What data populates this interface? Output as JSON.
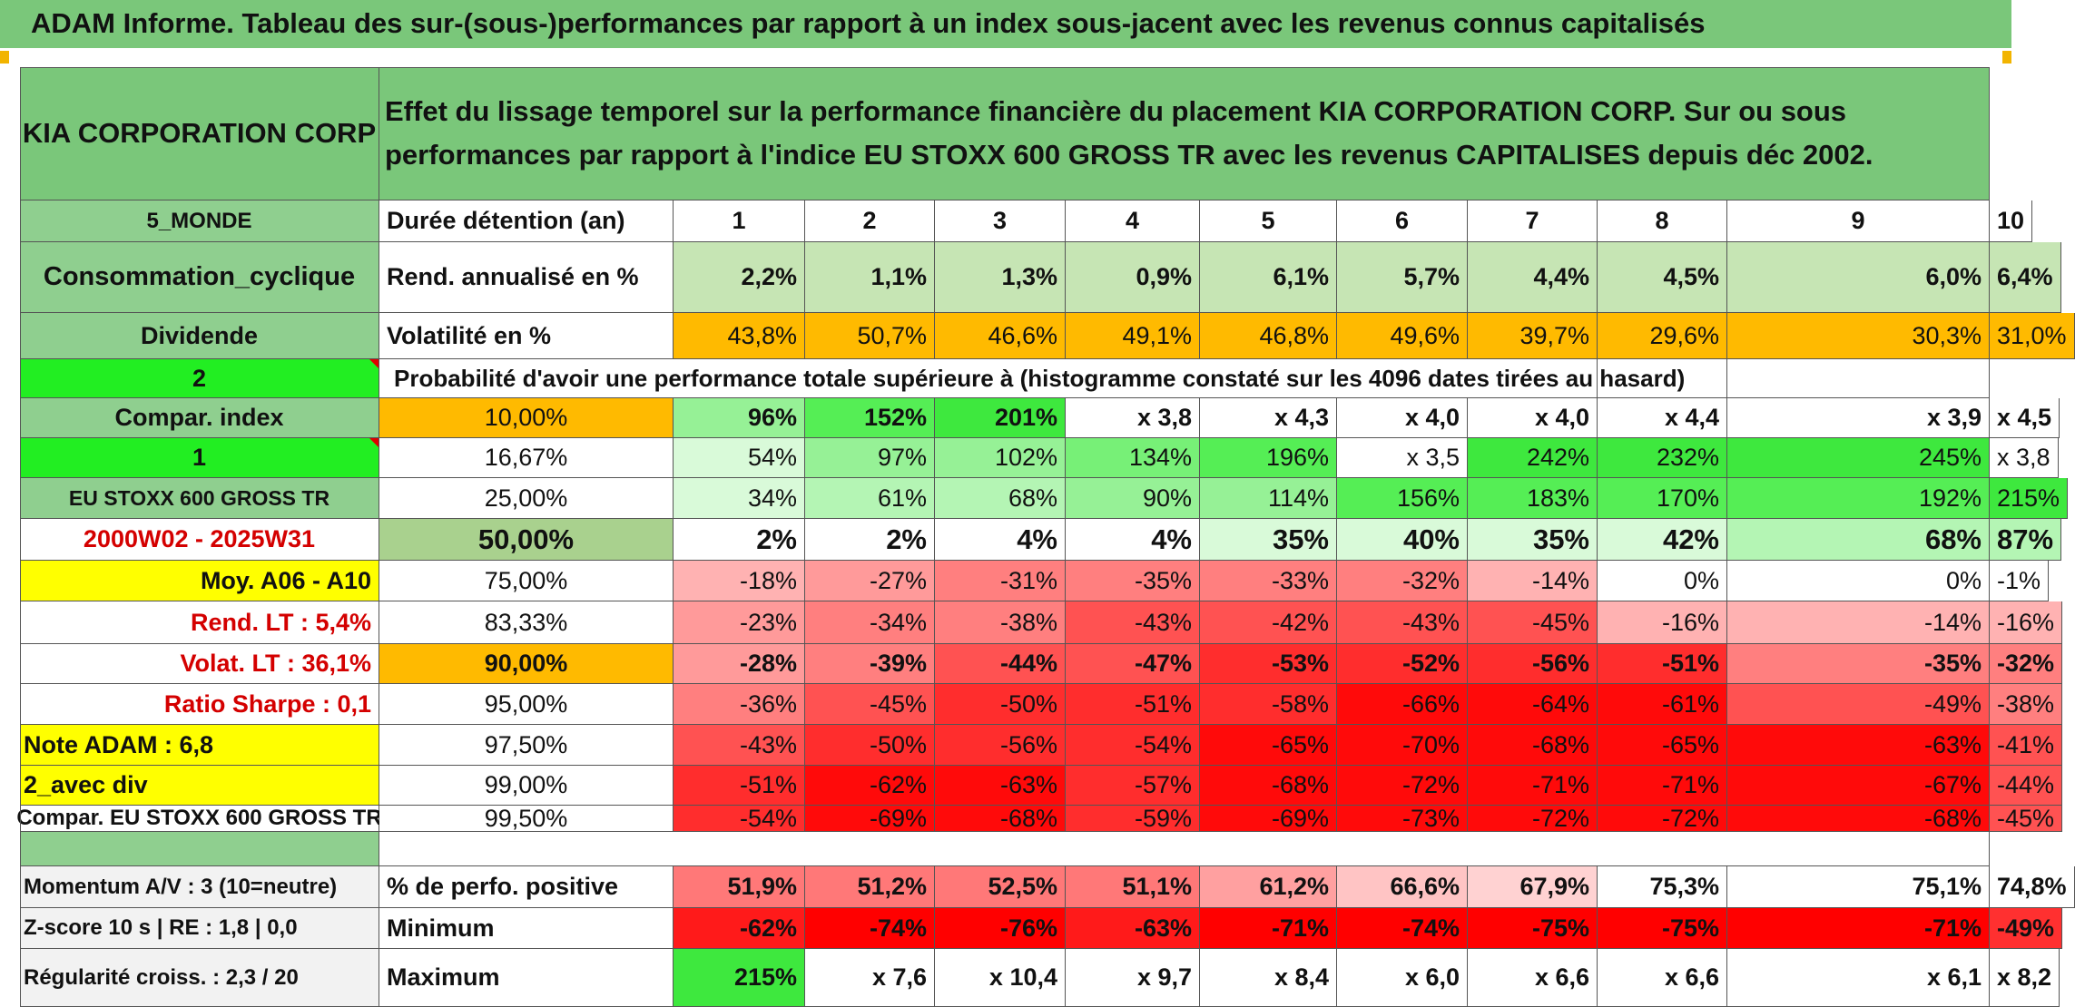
{
  "title": "ADAM Informe. Tableau des sur-(sous-)performances par rapport à un index sous-jacent avec les revenus connus capitalisés",
  "header": {
    "company": "KIA CORPORATION CORP",
    "description": "Effet du lissage temporel sur la performance financière du placement KIA CORPORATION CORP. Sur ou sous performances par rapport à l'indice EU STOXX 600 GROSS TR avec les revenus CAPITALISES depuis déc 2002."
  },
  "side_labels": [
    "5_MONDE",
    "Consommation_cyclique",
    "Dividende",
    "2",
    "Compar. index",
    "1",
    "EU STOXX 600 GROSS TR",
    "2000W02 - 2025W31",
    "Moy. A06 - A10",
    "Rend. LT :   5,4%",
    "Volat. LT :   36,1%",
    "Ratio Sharpe :    0,1",
    "Note ADAM : 6,8",
    "2_avec div",
    "Compar. EU STOXX 600 GROSS TR"
  ],
  "row_labels": {
    "duration": "Durée détention (an)",
    "return": "Rend. annualisé en %",
    "volatility": "Volatilité en %",
    "probability": "Probabilité d'avoir une performance totale supérieure à (histogramme constaté sur les 4096 dates tirées au hasard)"
  },
  "years": [
    "1",
    "2",
    "3",
    "4",
    "5",
    "6",
    "7",
    "8",
    "9",
    "10"
  ],
  "annual_return": [
    "2,2%",
    "1,1%",
    "1,3%",
    "0,9%",
    "6,1%",
    "5,7%",
    "4,4%",
    "4,5%",
    "6,0%",
    "6,4%"
  ],
  "volatility": [
    "43,8%",
    "50,7%",
    "46,6%",
    "49,1%",
    "46,8%",
    "49,6%",
    "39,7%",
    "29,6%",
    "30,3%",
    "31,0%"
  ],
  "percentiles": [
    {
      "p": "10,00%",
      "values": [
        "96%",
        "152%",
        "201%",
        "x 3,8",
        "x 4,3",
        "x 4,0",
        "x 4,0",
        "x 4,4",
        "x 3,9",
        "x 4,5"
      ]
    },
    {
      "p": "16,67%",
      "values": [
        "54%",
        "97%",
        "102%",
        "134%",
        "196%",
        "x 3,5",
        "242%",
        "232%",
        "245%",
        "x 3,8"
      ]
    },
    {
      "p": "25,00%",
      "values": [
        "34%",
        "61%",
        "68%",
        "90%",
        "114%",
        "156%",
        "183%",
        "170%",
        "192%",
        "215%"
      ]
    },
    {
      "p": "50,00%",
      "values": [
        "2%",
        "2%",
        "4%",
        "4%",
        "35%",
        "40%",
        "35%",
        "42%",
        "68%",
        "87%"
      ]
    },
    {
      "p": "75,00%",
      "values": [
        "-18%",
        "-27%",
        "-31%",
        "-35%",
        "-33%",
        "-32%",
        "-14%",
        "0%",
        "0%",
        "-1%"
      ]
    },
    {
      "p": "83,33%",
      "values": [
        "-23%",
        "-34%",
        "-38%",
        "-43%",
        "-42%",
        "-43%",
        "-45%",
        "-16%",
        "-14%",
        "-16%"
      ]
    },
    {
      "p": "90,00%",
      "values": [
        "-28%",
        "-39%",
        "-44%",
        "-47%",
        "-53%",
        "-52%",
        "-56%",
        "-51%",
        "-35%",
        "-32%"
      ]
    },
    {
      "p": "95,00%",
      "values": [
        "-36%",
        "-45%",
        "-50%",
        "-51%",
        "-58%",
        "-66%",
        "-64%",
        "-61%",
        "-49%",
        "-38%"
      ]
    },
    {
      "p": "97,50%",
      "values": [
        "-43%",
        "-50%",
        "-56%",
        "-54%",
        "-65%",
        "-70%",
        "-68%",
        "-65%",
        "-63%",
        "-41%"
      ]
    },
    {
      "p": "99,00%",
      "values": [
        "-51%",
        "-62%",
        "-63%",
        "-57%",
        "-68%",
        "-72%",
        "-71%",
        "-71%",
        "-67%",
        "-44%"
      ]
    },
    {
      "p": "99,50%",
      "values": [
        "-54%",
        "-69%",
        "-68%",
        "-59%",
        "-69%",
        "-73%",
        "-72%",
        "-72%",
        "-68%",
        "-45%"
      ]
    }
  ],
  "bottom": {
    "side": [
      "Momentum A/V : 3 (10=neutre)",
      "Z-score 10 s | RE : 1,8 | 0,0",
      "Régularité croiss. : 2,3 / 20"
    ],
    "labels": [
      "% de perfo. positive",
      "Minimum",
      "Maximum"
    ],
    "positive": [
      "51,9%",
      "51,2%",
      "52,5%",
      "51,1%",
      "61,2%",
      "66,6%",
      "67,9%",
      "75,3%",
      "75,1%",
      "74,8%"
    ],
    "minimum": [
      "-62%",
      "-74%",
      "-76%",
      "-63%",
      "-71%",
      "-74%",
      "-75%",
      "-75%",
      "-71%",
      "-49%"
    ],
    "maximum": [
      "215%",
      "x 7,6",
      "x 10,4",
      "x 9,7",
      "x 8,4",
      "x 6,0",
      "x 6,6",
      "x 6,6",
      "x 6,1",
      "x 8,2"
    ]
  },
  "colors": {
    "header_green": "#7ac77a",
    "label_green": "#8fcf8f",
    "bright_green": "#22ee22",
    "orange": "#ffba00",
    "yellow": "#ffff00",
    "red_strong": "#ff0000"
  }
}
